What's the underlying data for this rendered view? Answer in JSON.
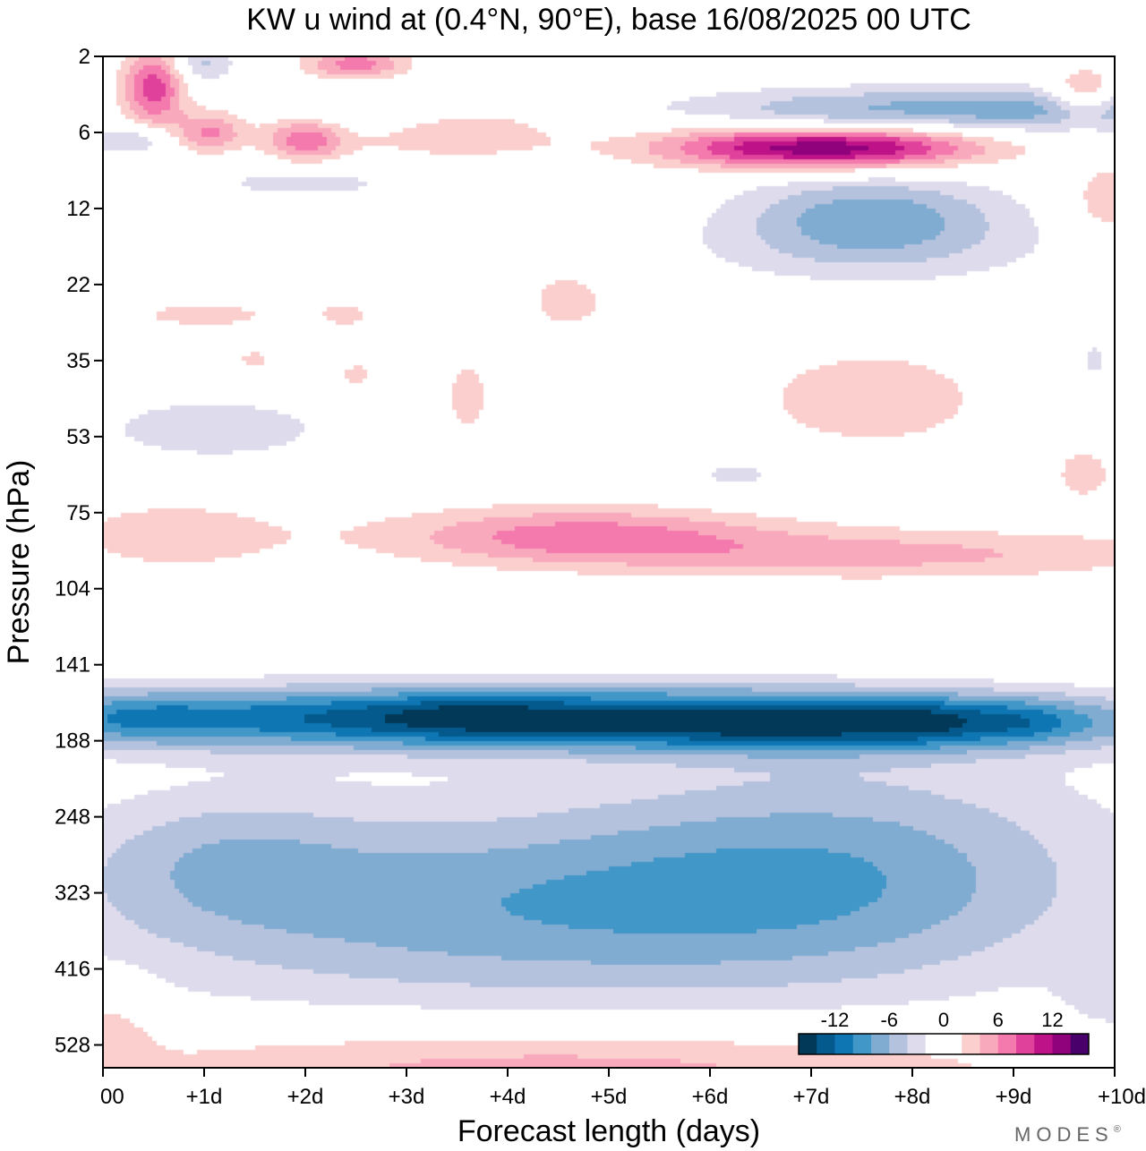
{
  "chart_data": {
    "type": "heatmap",
    "title": "KW u wind at (0.4°N, 90°E),  base 16/08/2025  00 UTC",
    "xlabel": "Forecast length (days)",
    "ylabel": "Pressure (hPa)",
    "x_ticks": [
      "00",
      "+1d",
      "+2d",
      "+3d",
      "+4d",
      "+5d",
      "+6d",
      "+7d",
      "+8d",
      "+9d",
      "+10d"
    ],
    "y_ticks": [
      "2",
      "6",
      "12",
      "22",
      "35",
      "53",
      "75",
      "104",
      "141",
      "188",
      "248",
      "323",
      "416",
      "528"
    ],
    "xlim": [
      0,
      10
    ],
    "ylevels": [
      2,
      6,
      12,
      22,
      35,
      53,
      75,
      104,
      141,
      188,
      248,
      323,
      416,
      528
    ],
    "ylim_index": [
      0,
      13.3
    ],
    "colorbar": {
      "labels": [
        {
          "text": "-12",
          "value": -12
        },
        {
          "text": "-6",
          "value": -6
        },
        {
          "text": "0",
          "value": 0
        },
        {
          "text": "6",
          "value": 6
        },
        {
          "text": "12",
          "value": 12
        }
      ],
      "levels": [
        -16,
        -14,
        -12,
        -10,
        -8,
        -6,
        -4,
        -2,
        0,
        2,
        4,
        6,
        8,
        10,
        12,
        14,
        16
      ]
    },
    "bands": [
      {
        "from": -2,
        "to": 2,
        "color": "#ffffff"
      },
      {
        "from": -4,
        "to": -2,
        "color": "#dedbec"
      },
      {
        "from": -6,
        "to": -4,
        "color": "#b5c2de"
      },
      {
        "from": -8,
        "to": -6,
        "color": "#81acd2"
      },
      {
        "from": -10,
        "to": -8,
        "color": "#4197c8"
      },
      {
        "from": -12,
        "to": -10,
        "color": "#0f76b4"
      },
      {
        "from": -14,
        "to": -12,
        "color": "#045a8d"
      },
      {
        "from": -16,
        "to": -14,
        "color": "#023858"
      },
      {
        "from": 2,
        "to": 4,
        "color": "#fccfcf"
      },
      {
        "from": 4,
        "to": 6,
        "color": "#f8a9bc"
      },
      {
        "from": 6,
        "to": 8,
        "color": "#f47aae"
      },
      {
        "from": 8,
        "to": 10,
        "color": "#e0429b"
      },
      {
        "from": 10,
        "to": 12,
        "color": "#bd1288"
      },
      {
        "from": 12,
        "to": 14,
        "color": "#8f027c"
      },
      {
        "from": 14,
        "to": 16,
        "color": "#49006a"
      }
    ],
    "features": [
      {
        "x": 3.1,
        "y": 8.7,
        "sx": 3.8,
        "sy": 0.42,
        "amp": -12.4
      },
      {
        "x": 7.6,
        "y": 8.75,
        "sx": 3.0,
        "sy": 0.38,
        "amp": -11.6
      },
      {
        "x": 0.25,
        "y": 8.7,
        "sx": 0.9,
        "sy": 0.36,
        "amp": -3.6
      },
      {
        "x": 3.6,
        "y": 8.65,
        "sx": 0.8,
        "sy": 0.32,
        "amp": -1.8
      },
      {
        "x": 8.1,
        "y": 8.75,
        "sx": 0.45,
        "sy": 0.3,
        "amp": -1.5
      },
      {
        "x": 9.1,
        "y": 8.75,
        "sx": 0.45,
        "sy": 0.3,
        "amp": -1.5
      },
      {
        "x": 4.0,
        "y": 11.2,
        "sx": 4.2,
        "sy": 1.3,
        "amp": -7.2
      },
      {
        "x": 7.4,
        "y": 10.6,
        "sx": 2.6,
        "sy": 1.5,
        "amp": -5.2
      },
      {
        "x": 1.2,
        "y": 10.5,
        "sx": 1.4,
        "sy": 0.9,
        "amp": -3.2
      },
      {
        "x": 4.7,
        "y": 6.3,
        "sx": 1.9,
        "sy": 0.38,
        "amp": 6.8
      },
      {
        "x": 7.8,
        "y": 6.55,
        "sx": 2.8,
        "sy": 0.33,
        "amp": 4.6
      },
      {
        "x": 0.7,
        "y": 6.3,
        "sx": 1.2,
        "sy": 0.5,
        "amp": 3.2
      },
      {
        "x": 4.5,
        "y": 13.3,
        "sx": 4.6,
        "sy": 0.55,
        "amp": 5.2
      },
      {
        "x": 0.1,
        "y": 12.8,
        "sx": 0.4,
        "sy": 0.7,
        "amp": 2.8
      },
      {
        "x": 7.1,
        "y": 1.2,
        "sx": 1.5,
        "sy": 0.28,
        "amp": 15.0
      },
      {
        "x": 7.0,
        "y": 1.05,
        "sx": 0.7,
        "sy": 0.45,
        "amp": -1.5
      },
      {
        "x": 8.9,
        "y": 0.7,
        "sx": 3.0,
        "sy": 0.3,
        "amp": -7.4
      },
      {
        "x": 7.6,
        "y": 2.1,
        "sx": 1.3,
        "sy": 0.55,
        "amp": -7.0
      },
      {
        "x": 3.4,
        "y": 1.0,
        "sx": 1.1,
        "sy": 0.35,
        "amp": 4.2
      },
      {
        "x": 0.5,
        "y": 0.42,
        "sx": 0.3,
        "sy": 0.5,
        "amp": 9.2
      },
      {
        "x": 2.0,
        "y": 1.1,
        "sx": 0.4,
        "sy": 0.32,
        "amp": 7.2
      },
      {
        "x": 1.05,
        "y": 1.0,
        "sx": 0.35,
        "sy": 0.28,
        "amp": 6.4
      },
      {
        "x": 2.5,
        "y": 0.1,
        "sx": 0.5,
        "sy": 0.2,
        "amp": 7.2
      },
      {
        "x": 9.7,
        "y": 0.5,
        "sx": 0.35,
        "sy": 0.32,
        "amp": 6.0
      },
      {
        "x": 9.9,
        "y": 1.9,
        "sx": 0.35,
        "sy": 0.5,
        "amp": 3.4
      },
      {
        "x": 0.3,
        "y": 1.1,
        "sx": 0.4,
        "sy": 0.2,
        "amp": -4.4
      },
      {
        "x": 2.0,
        "y": 1.65,
        "sx": 1.3,
        "sy": 0.3,
        "amp": -2.6
      },
      {
        "x": 1.0,
        "y": 0.1,
        "sx": 0.3,
        "sy": 0.25,
        "amp": -4.4
      },
      {
        "x": 2.6,
        "y": 0.75,
        "sx": 0.8,
        "sy": 0.3,
        "amp": -3.2
      },
      {
        "x": 7.6,
        "y": 4.5,
        "sx": 1.4,
        "sy": 0.8,
        "amp": 3.0
      },
      {
        "x": 3.6,
        "y": 4.5,
        "sx": 0.25,
        "sy": 0.6,
        "amp": 3.0
      },
      {
        "x": 4.6,
        "y": 3.2,
        "sx": 0.5,
        "sy": 0.5,
        "amp": 2.8
      },
      {
        "x": 1.0,
        "y": 3.4,
        "sx": 0.9,
        "sy": 0.22,
        "amp": 2.7
      },
      {
        "x": 2.4,
        "y": 3.4,
        "sx": 0.3,
        "sy": 0.2,
        "amp": 2.6
      },
      {
        "x": 1.5,
        "y": 4.0,
        "sx": 0.25,
        "sy": 0.2,
        "amp": 2.6
      },
      {
        "x": 2.5,
        "y": 4.2,
        "sx": 0.25,
        "sy": 0.25,
        "amp": 2.6
      },
      {
        "x": 1.1,
        "y": 4.9,
        "sx": 1.4,
        "sy": 0.5,
        "amp": -3.0
      },
      {
        "x": 6.3,
        "y": 5.5,
        "sx": 0.7,
        "sy": 0.3,
        "amp": -2.6
      },
      {
        "x": 7.6,
        "y": 2.6,
        "sx": 2.0,
        "sy": 0.5,
        "amp": -2.3
      },
      {
        "x": 9.7,
        "y": 5.5,
        "sx": 0.4,
        "sy": 0.5,
        "amp": 2.5
      },
      {
        "x": 9.8,
        "y": 4.0,
        "sx": 0.22,
        "sy": 0.45,
        "amp": -2.4
      },
      {
        "x": 10.0,
        "y": 12.3,
        "sx": 0.5,
        "sy": 0.6,
        "amp": -2.8
      }
    ]
  },
  "brand": "MODES",
  "brand_mark": "®"
}
